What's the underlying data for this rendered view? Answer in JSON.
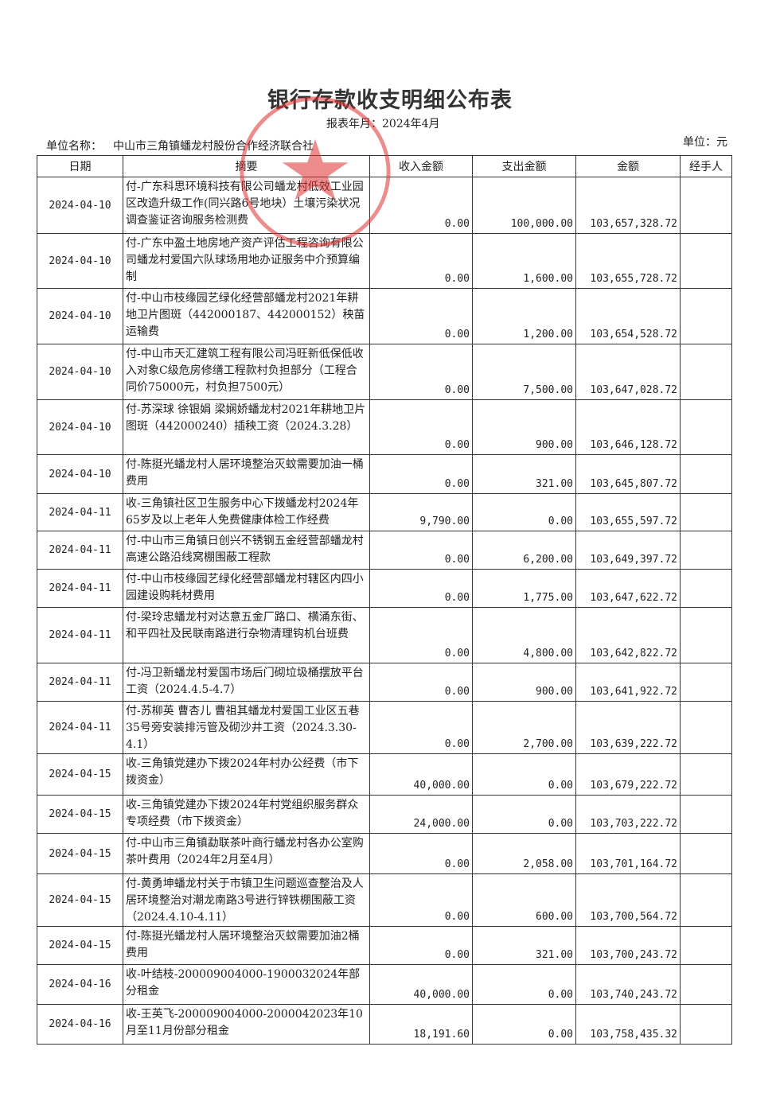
{
  "title": "银行存款收支明细公布表",
  "period": "报表年月：2024年4月",
  "unit_label": "单位名称：",
  "unit_name": "中山市三角镇蟠龙村股份合作经济联合社",
  "currency_unit": "单位：元",
  "stamp_text": "中山市三角镇蟠龙村股份合作经济联合社",
  "stamp_color": "#e03030",
  "columns": [
    "日期",
    "摘要",
    "收入金额",
    "支出金额",
    "金额",
    "经手人"
  ],
  "rows": [
    {
      "date": "2024-04-10",
      "desc": "付-广东科思环境科技有限公司蟠龙村低效工业园区改造升级工作(同兴路6号地块）土壤污染状况调查鉴证咨询服务检测费",
      "income": "0.00",
      "expense": "100,000.00",
      "balance": "103,657,328.72",
      "handler": ""
    },
    {
      "date": "2024-04-10",
      "desc": "付-广东中盈土地房地产资产评估工程咨询有限公司蟠龙村爱国六队球场用地办证服务中介预算编制",
      "income": "0.00",
      "expense": "1,600.00",
      "balance": "103,655,728.72",
      "handler": ""
    },
    {
      "date": "2024-04-10",
      "desc": "付-中山市枝缘园艺绿化经营部蟠龙村2021年耕地卫片图斑（442000187、442000152）秧苗运输费",
      "income": "0.00",
      "expense": "1,200.00",
      "balance": "103,654,528.72",
      "handler": ""
    },
    {
      "date": "2024-04-10",
      "desc": "付-中山市天汇建筑工程有限公司冯旺新低保低收入对象C级危房修缮工程款村负担部分（工程合同价75000元，村负担7500元）",
      "income": "0.00",
      "expense": "7,500.00",
      "balance": "103,647,028.72",
      "handler": ""
    },
    {
      "date": "2024-04-10",
      "desc": "付-苏深球 徐银娟 梁娴娇蟠龙村2021年耕地卫片图斑（442000240）插秧工资（2024.3.28）",
      "income": "0.00",
      "expense": "900.00",
      "balance": "103,646,128.72",
      "handler": ""
    },
    {
      "date": "2024-04-10",
      "desc": "付-陈挺光蟠龙村人居环境整治灭蚊需要加油一桶费用",
      "income": "0.00",
      "expense": "321.00",
      "balance": "103,645,807.72",
      "handler": ""
    },
    {
      "date": "2024-04-11",
      "desc": "收-三角镇社区卫生服务中心下拨蟠龙村2024年65岁及以上老年人免费健康体检工作经费",
      "income": "9,790.00",
      "expense": "0.00",
      "balance": "103,655,597.72",
      "handler": ""
    },
    {
      "date": "2024-04-11",
      "desc": "付-中山市三角镇日创兴不锈钢五金经营部蟠龙村高速公路沿线窝棚围蔽工程款",
      "income": "0.00",
      "expense": "6,200.00",
      "balance": "103,649,397.72",
      "handler": ""
    },
    {
      "date": "2024-04-11",
      "desc": "付-中山市枝缘园艺绿化经营部蟠龙村辖区内四小园建设购耗材费用",
      "income": "0.00",
      "expense": "1,775.00",
      "balance": "103,647,622.72",
      "handler": ""
    },
    {
      "date": "2024-04-11",
      "desc": "付-梁玲忠蟠龙村对达意五金厂路口、横涌东街、和平四社及民联南路进行杂物清理钩机台班费",
      "income": "0.00",
      "expense": "4,800.00",
      "balance": "103,642,822.72",
      "handler": ""
    },
    {
      "date": "2024-04-11",
      "desc": "付-冯卫新蟠龙村爱国市场后门砌垃圾桶摆放平台工资（2024.4.5-4.7）",
      "income": "0.00",
      "expense": "900.00",
      "balance": "103,641,922.72",
      "handler": ""
    },
    {
      "date": "2024-04-11",
      "desc": "付-苏柳英 曹杏儿 曹祖其蟠龙村爱国工业区五巷35号旁安装排污管及砌沙井工资（2024.3.30-4.1）",
      "income": "0.00",
      "expense": "2,700.00",
      "balance": "103,639,222.72",
      "handler": ""
    },
    {
      "date": "2024-04-15",
      "desc": "收-三角镇党建办下拨2024年村办公经费（市下拨资金）",
      "income": "40,000.00",
      "expense": "0.00",
      "balance": "103,679,222.72",
      "handler": ""
    },
    {
      "date": "2024-04-15",
      "desc": "收-三角镇党建办下拨2024年村党组织服务群众专项经费（市下拨资金）",
      "income": "24,000.00",
      "expense": "0.00",
      "balance": "103,703,222.72",
      "handler": ""
    },
    {
      "date": "2024-04-15",
      "desc": "付-中山市三角镇勐联茶叶商行蟠龙村各办公室购茶叶费用（2024年2月至4月）",
      "income": "0.00",
      "expense": "2,058.00",
      "balance": "103,701,164.72",
      "handler": ""
    },
    {
      "date": "2024-04-15",
      "desc": "付-黄勇坤蟠龙村关于市镇卫生问题巡查整治及人居环境整治对潮龙南路3号进行锌铁棚围蔽工资（2024.4.10-4.11）",
      "income": "0.00",
      "expense": "600.00",
      "balance": "103,700,564.72",
      "handler": ""
    },
    {
      "date": "2024-04-15",
      "desc": "付-陈挺光蟠龙村人居环境整治灭蚊需要加油2桶费用",
      "income": "0.00",
      "expense": "321.00",
      "balance": "103,700,243.72",
      "handler": ""
    },
    {
      "date": "2024-04-16",
      "desc": "收-叶结枝-200009004000-1900032024年部分租金",
      "income": "40,000.00",
      "expense": "0.00",
      "balance": "103,740,243.72",
      "handler": ""
    },
    {
      "date": "2024-04-16",
      "desc": "收-王英飞-200009004000-2000042023年10月至11月份部分租金",
      "income": "18,191.60",
      "expense": "0.00",
      "balance": "103,758,435.32",
      "handler": ""
    }
  ]
}
